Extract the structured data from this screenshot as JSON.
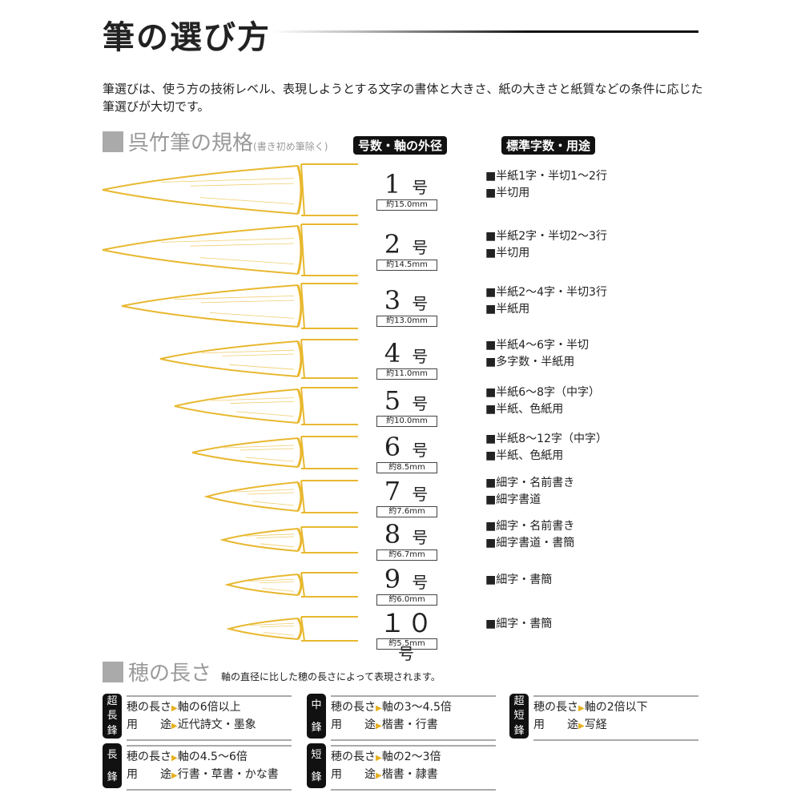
{
  "title": "筆の選び方",
  "intro": "筆選びは、使う方の技術レベル、表現しようとする文字の書体と大きさ、紙の大きさと紙質などの条件に応じた筆選びが大切です。",
  "spec_section": {
    "title": "呉竹筆の規格",
    "note": "(書き初め筆除く)",
    "col_size": "号数・軸の外径",
    "col_use": "標準字数・用途"
  },
  "brush_color": "#e8b830",
  "rows": [
    {
      "num": "1",
      "unit": "号",
      "dia": "約15.0mm",
      "use": [
        "■半紙1字・半切1～2行",
        "■半切用"
      ]
    },
    {
      "num": "2",
      "unit": "号",
      "dia": "約14.5mm",
      "use": [
        "■半紙2字・半切2～3行",
        "■半切用"
      ]
    },
    {
      "num": "3",
      "unit": "号",
      "dia": "約13.0mm",
      "use": [
        "■半紙2～4字・半切3行",
        "■半紙用"
      ]
    },
    {
      "num": "4",
      "unit": "号",
      "dia": "約11.0mm",
      "use": [
        "■半紙4～6字・半切",
        "■多字数・半紙用"
      ]
    },
    {
      "num": "5",
      "unit": "号",
      "dia": "約10.0mm",
      "use": [
        "■半紙6～8字（中字）",
        "■半紙、色紙用"
      ]
    },
    {
      "num": "6",
      "unit": "号",
      "dia": "約8.5mm",
      "use": [
        "■半紙8～12字（中字）",
        "■半紙、色紙用"
      ]
    },
    {
      "num": "7",
      "unit": "号",
      "dia": "約7.6mm",
      "use": [
        "■細字・名前書き",
        "■細字書道"
      ]
    },
    {
      "num": "8",
      "unit": "号",
      "dia": "約6.7mm",
      "use": [
        "■細字・名前書き",
        "■細字書道・書簡"
      ]
    },
    {
      "num": "9",
      "unit": "号",
      "dia": "約6.0mm",
      "use": [
        "■細字・書簡"
      ]
    },
    {
      "num": "１０",
      "unit": "号",
      "dia": "約5.5mm",
      "use": [
        "■細字・書簡"
      ]
    }
  ],
  "length_section": {
    "title": "穂の長さ",
    "note": "軸の直径に比した穂の長さによって表現されます。"
  },
  "cards": [
    {
      "tag": [
        "超",
        "長",
        "鋒"
      ],
      "len_label": "穂の長さ",
      "len": "軸の6倍以上",
      "use_label": "用　　途",
      "use": "近代詩文・墨象"
    },
    {
      "tag": [
        "中",
        "鋒"
      ],
      "len_label": "穂の長さ",
      "len": "軸の3～4.5倍",
      "use_label": "用　　途",
      "use": "楷書・行書"
    },
    {
      "tag": [
        "超",
        "短",
        "鋒"
      ],
      "len_label": "穂の長さ",
      "len": "軸の2倍以下",
      "use_label": "用　　途",
      "use": "写経"
    },
    {
      "tag": [
        "長",
        "鋒"
      ],
      "len_label": "穂の長さ",
      "len": "軸の4.5～6倍",
      "use_label": "用　　途",
      "use": "行書・草書・かな書"
    },
    {
      "tag": [
        "短",
        "鋒"
      ],
      "len_label": "穂の長さ",
      "len": "軸の2～3倍",
      "use_label": "用　　途",
      "use": "楷書・隷書"
    }
  ]
}
